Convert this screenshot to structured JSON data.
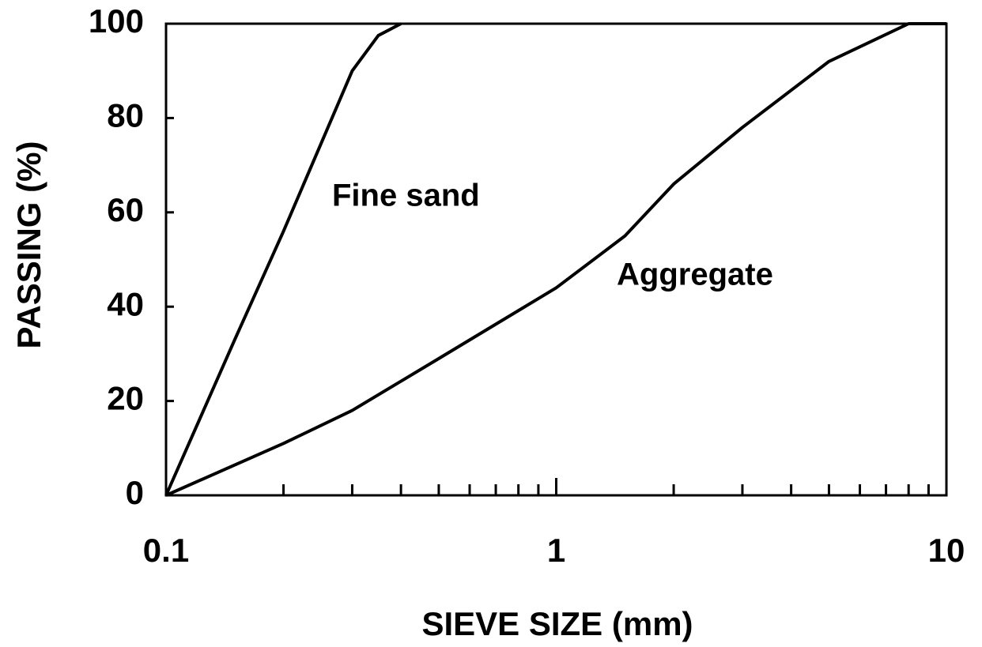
{
  "chart_data": {
    "type": "line",
    "xlabel": "SIEVE SIZE (mm)",
    "ylabel": "PASSING (%)",
    "xscale": "log",
    "xlim": [
      0.1,
      10
    ],
    "xticks": [
      0.1,
      1,
      10
    ],
    "xminor": [
      0.2,
      0.3,
      0.4,
      0.5,
      0.6,
      0.7,
      0.8,
      0.9,
      2,
      3,
      4,
      5,
      6,
      7,
      8,
      9
    ],
    "ylim": [
      0,
      100
    ],
    "yticks": [
      0,
      20,
      40,
      60,
      80,
      100
    ],
    "grid": false,
    "series": [
      {
        "name": "Fine sand",
        "color": "#000000",
        "x": [
          0.1,
          0.15,
          0.2,
          0.3,
          0.35,
          0.4
        ],
        "values": [
          0,
          33,
          56,
          90,
          97.5,
          100
        ]
      },
      {
        "name": "Aggregate",
        "color": "#000000",
        "x": [
          0.1,
          0.2,
          0.3,
          0.5,
          1,
          1.5,
          2,
          3,
          5,
          8,
          10
        ],
        "values": [
          0,
          11,
          18,
          29,
          44,
          55,
          66,
          78,
          92,
          100,
          100
        ]
      }
    ]
  }
}
